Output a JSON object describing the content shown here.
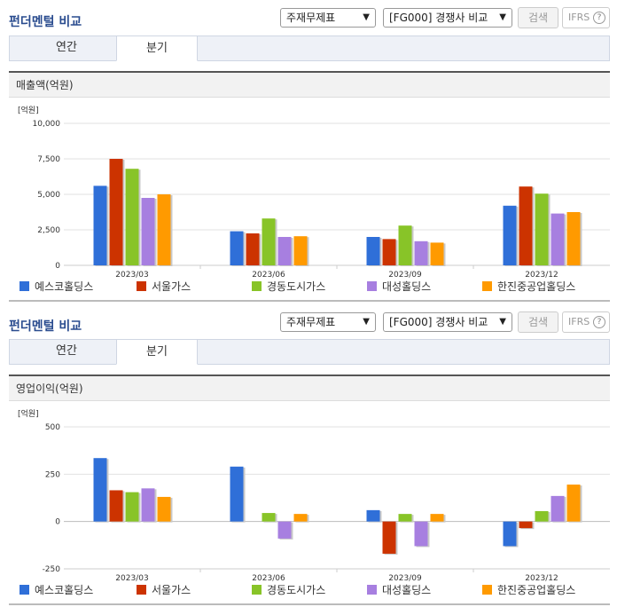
{
  "panels": [
    {
      "title": "펀더멘털 비교",
      "select_statement": "주재무제표",
      "select_compare": "[FG000] 경쟁사 비교",
      "search_label": "검색",
      "ifrs_label": "IFRS",
      "help_glyph": "?",
      "tabs": [
        {
          "label": "연간",
          "active": false
        },
        {
          "label": "분기",
          "active": true
        }
      ],
      "chart_header": "매출액(억원)"
    },
    {
      "title": "펀더멘털 비교",
      "select_statement": "주재무제표",
      "select_compare": "[FG000] 경쟁사 비교",
      "search_label": "검색",
      "ifrs_label": "IFRS",
      "help_glyph": "?",
      "tabs": [
        {
          "label": "연간",
          "active": false
        },
        {
          "label": "분기",
          "active": true
        }
      ],
      "chart_header": "영업이익(억원)"
    }
  ],
  "chart_data": [
    {
      "type": "bar",
      "title": "",
      "ylabel": "[억원]",
      "ylim": [
        0,
        10000
      ],
      "yticks": [
        0,
        2500,
        5000,
        7500,
        10000
      ],
      "ytick_labels": [
        "0",
        "2,500",
        "5,000",
        "7,500",
        "10,000"
      ],
      "categories": [
        "2023/03",
        "2023/06",
        "2023/09",
        "2023/12"
      ],
      "legend_position": "bottom",
      "series": [
        {
          "name": "예스코홀딩스",
          "color": "#2f6fd8",
          "values": [
            5600,
            2400,
            2000,
            4200
          ]
        },
        {
          "name": "서울가스",
          "color": "#cc3300",
          "values": [
            7500,
            2250,
            1850,
            5550
          ]
        },
        {
          "name": "경동도시가스",
          "color": "#88c428",
          "values": [
            6800,
            3300,
            2800,
            5050
          ]
        },
        {
          "name": "대성홀딩스",
          "color": "#a77fe0",
          "values": [
            4750,
            2000,
            1700,
            3650
          ]
        },
        {
          "name": "한진중공업홀딩스",
          "color": "#ff9a00",
          "values": [
            5000,
            2050,
            1600,
            3750
          ]
        }
      ]
    },
    {
      "type": "bar",
      "title": "",
      "ylabel": "[억원]",
      "ylim": [
        -250,
        500
      ],
      "yticks": [
        -250,
        0,
        250,
        500
      ],
      "ytick_labels": [
        "-250",
        "0",
        "250",
        "500"
      ],
      "categories": [
        "2023/03",
        "2023/06",
        "2023/09",
        "2023/12"
      ],
      "legend_position": "bottom",
      "series": [
        {
          "name": "예스코홀딩스",
          "color": "#2f6fd8",
          "values": [
            335,
            290,
            60,
            -130
          ]
        },
        {
          "name": "서울가스",
          "color": "#cc3300",
          "values": [
            165,
            0,
            -170,
            -35
          ]
        },
        {
          "name": "경동도시가스",
          "color": "#88c428",
          "values": [
            155,
            45,
            40,
            55
          ]
        },
        {
          "name": "대성홀딩스",
          "color": "#a77fe0",
          "values": [
            175,
            -90,
            -130,
            135
          ]
        },
        {
          "name": "한진중공업홀딩스",
          "color": "#ff9a00",
          "values": [
            130,
            40,
            40,
            195
          ]
        }
      ]
    }
  ]
}
